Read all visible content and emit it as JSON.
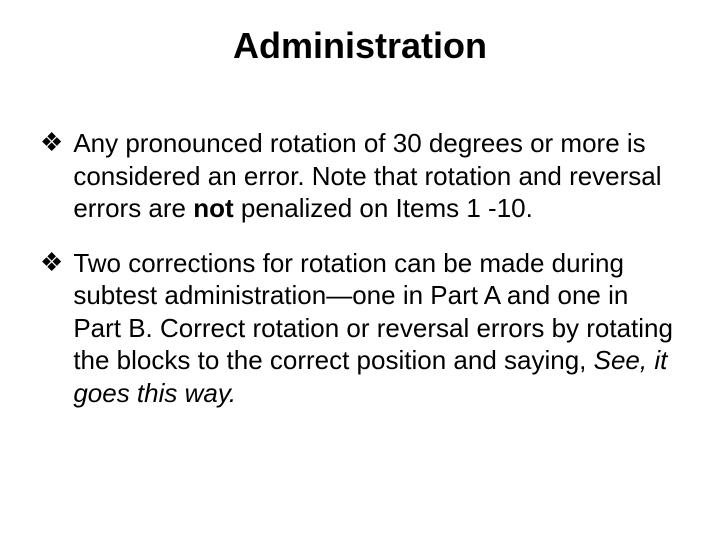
{
  "slide": {
    "title": "Administration",
    "title_fontsize": 36,
    "title_fontweight": "bold",
    "title_color": "#000000",
    "body_fontsize": 26,
    "body_color": "#000000",
    "bullet_glyph": "❖",
    "bullets": [
      {
        "pre": " Any pronounced rotation of 30 degrees or more is considered an error. Note that rotation and reversal errors are ",
        "bold": "not",
        "post": " penalized on Items 1 -10."
      },
      {
        "pre": " Two corrections for rotation can be made during subtest administration—one in Part A and one in Part B. Correct rotation or reversal errors by rotating the blocks to the correct position and saying,  ",
        "italic": "See, it goes this way."
      }
    ],
    "background_color": "#ffffff"
  }
}
